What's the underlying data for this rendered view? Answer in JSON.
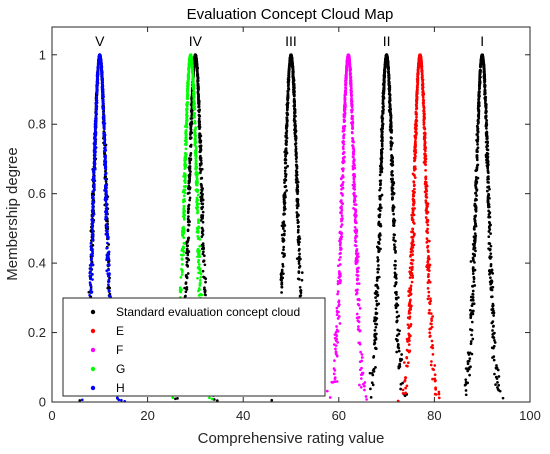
{
  "chart_data": {
    "type": "scatter",
    "title": "Evaluation Concept Cloud Map",
    "xlabel": "Comprehensive rating value",
    "ylabel": "Membership degree",
    "xlim": [
      0,
      100
    ],
    "ylim": [
      0,
      1.08
    ],
    "xticks": [
      "0",
      "20",
      "40",
      "60",
      "80",
      "100"
    ],
    "yticks": [
      "0",
      "0.2",
      "0.4",
      "0.6",
      "0.8",
      "1"
    ],
    "grid": false,
    "legend_position": "bottom-left",
    "grade_labels": [
      {
        "text": "V",
        "x": 10
      },
      {
        "text": "IV",
        "x": 30
      },
      {
        "text": "III",
        "x": 50
      },
      {
        "text": "II",
        "x": 70
      },
      {
        "text": "I",
        "x": 90
      }
    ],
    "series": [
      {
        "name": "Standard evaluation concept cloud",
        "color": "#000000",
        "clouds": [
          {
            "Ex": 10,
            "En": 1.3,
            "He": 0.12
          },
          {
            "Ex": 30,
            "En": 1.3,
            "He": 0.12
          },
          {
            "Ex": 50,
            "En": 1.3,
            "He": 0.12
          },
          {
            "Ex": 70,
            "En": 1.3,
            "He": 0.12
          },
          {
            "Ex": 90,
            "En": 1.3,
            "He": 0.12
          }
        ]
      },
      {
        "name": "E",
        "color": "#ff0000",
        "clouds": [
          {
            "Ex": 77,
            "En": 1.3,
            "He": 0.12
          }
        ]
      },
      {
        "name": "F",
        "color": "#ff00ff",
        "clouds": [
          {
            "Ex": 62,
            "En": 1.3,
            "He": 0.12
          }
        ]
      },
      {
        "name": "G",
        "color": "#00ff00",
        "clouds": [
          {
            "Ex": 29,
            "En": 1.3,
            "He": 0.12
          }
        ]
      },
      {
        "name": "H",
        "color": "#0000ff",
        "clouds": [
          {
            "Ex": 10,
            "En": 1.3,
            "He": 0.12
          }
        ]
      }
    ]
  }
}
